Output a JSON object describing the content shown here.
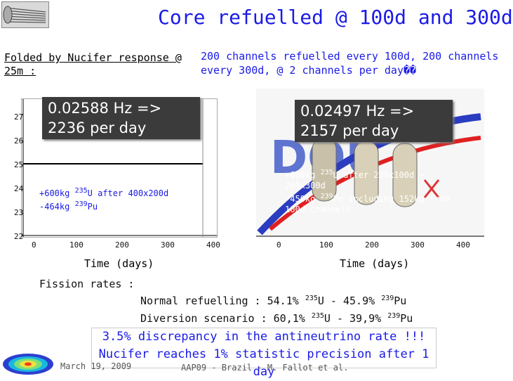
{
  "title": "Core refuelled @ 100d and 300d",
  "subtitle_left": "Folded by Nucifer response @ 25m :",
  "subtitle_right": "200 channels refuelled every 100d, 200 channels every 300d, @ 2 channels per day��",
  "left_plot": {
    "callout_line1": "0.02588 Hz =>",
    "callout_line2": "2236 per day",
    "annot_line1_pre": "+600kg ",
    "annot_line1_sup": "235",
    "annot_line1_post": "U after 400x200d",
    "annot_line2_pre": "-464kg ",
    "annot_line2_sup": "239",
    "annot_line2_post": "Pu",
    "y_ticks": [
      "27",
      "26",
      "25",
      "24",
      "23",
      "22"
    ],
    "x_ticks": [
      "0",
      "100",
      "200",
      "300",
      "400"
    ]
  },
  "right_plot": {
    "callout_line1": "0.02497 Hz =>",
    "callout_line2": "2157 per day",
    "annot_line1_pre": "+600kg ",
    "annot_line1_sup": "235",
    "annot_line1_post": "U after 200x100d +",
    "annot_line2": "200x300d",
    "annot_line3_pre": "-450kg ",
    "annot_line3_sup": "239",
    "annot_line3_post": "Pu including 152kg from",
    "annot_line4": "100d channels",
    "x_ticks": [
      "0",
      "100",
      "200",
      "300",
      "400"
    ]
  },
  "x_axis_label": "Time (days)",
  "fission_label": "Fission rates :",
  "normal": {
    "pre": "Normal refuelling : 54.1% ",
    "sup1": "235",
    "mid": "U - 45.9% ",
    "sup2": "239",
    "post": "Pu"
  },
  "diversion": {
    "pre": "Diversion scenario : 60,1% ",
    "sup1": "235",
    "mid": "U - 39,9% ",
    "sup2": "239",
    "post": "Pu"
  },
  "summary_line1": "3.5% discrepancy in the antineutrino rate !!!",
  "summary_line2": "Nucifer reaches 1% statistic precision after 1 day",
  "footer_date": "March 19, 2009",
  "footer_conf": "AAP09 - Brazil - M. Fallot et al.",
  "colors": {
    "accent_blue": "#1a1ae6",
    "callout_bg": "#3b3b3b"
  }
}
